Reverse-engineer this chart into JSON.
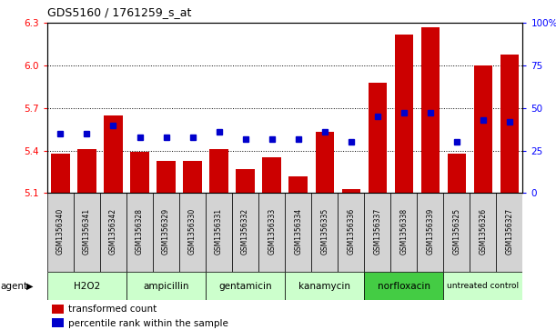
{
  "title": "GDS5160 / 1761259_s_at",
  "samples": [
    "GSM1356340",
    "GSM1356341",
    "GSM1356342",
    "GSM1356328",
    "GSM1356329",
    "GSM1356330",
    "GSM1356331",
    "GSM1356332",
    "GSM1356333",
    "GSM1356334",
    "GSM1356335",
    "GSM1356336",
    "GSM1356337",
    "GSM1356338",
    "GSM1356339",
    "GSM1356325",
    "GSM1356326",
    "GSM1356327"
  ],
  "transformed_count": [
    5.38,
    5.41,
    5.65,
    5.39,
    5.33,
    5.33,
    5.41,
    5.27,
    5.35,
    5.22,
    5.53,
    5.13,
    5.88,
    6.22,
    6.27,
    5.38,
    6.0,
    6.08
  ],
  "percentile_rank": [
    35,
    35,
    40,
    33,
    33,
    33,
    36,
    32,
    32,
    32,
    36,
    30,
    45,
    47,
    47,
    30,
    43,
    42
  ],
  "groups": [
    {
      "label": "H2O2",
      "start": 0,
      "end": 3,
      "color": "#ccffcc"
    },
    {
      "label": "ampicillin",
      "start": 3,
      "end": 6,
      "color": "#ccffcc"
    },
    {
      "label": "gentamicin",
      "start": 6,
      "end": 9,
      "color": "#ccffcc"
    },
    {
      "label": "kanamycin",
      "start": 9,
      "end": 12,
      "color": "#ccffcc"
    },
    {
      "label": "norfloxacin",
      "start": 12,
      "end": 15,
      "color": "#44cc44"
    },
    {
      "label": "untreated control",
      "start": 15,
      "end": 18,
      "color": "#ccffcc"
    }
  ],
  "ymin": 5.1,
  "ymax": 6.3,
  "yticks_left": [
    5.1,
    5.4,
    5.7,
    6.0,
    6.3
  ],
  "yticks_right_vals": [
    0,
    25,
    50,
    75,
    100
  ],
  "bar_color": "#cc0000",
  "dot_color": "#0000cc",
  "bar_base": 5.1,
  "agent_label": "agent",
  "legend_bar_label": "transformed count",
  "legend_dot_label": "percentile rank within the sample"
}
